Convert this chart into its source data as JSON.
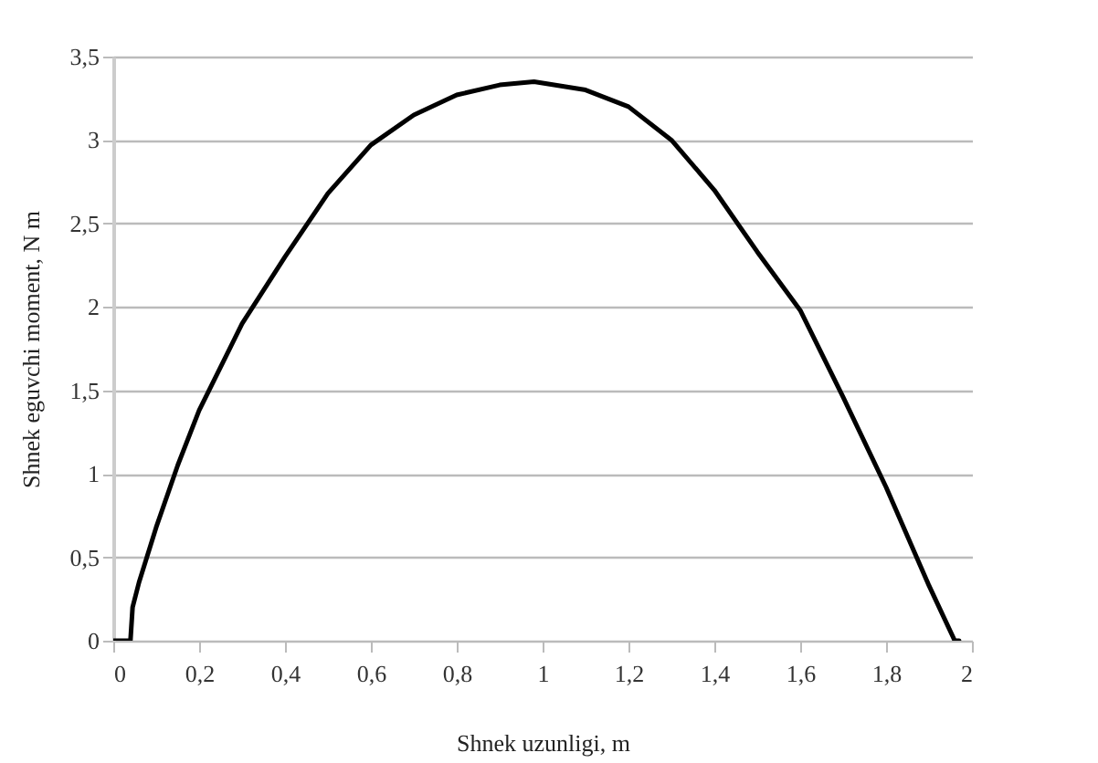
{
  "chart_data": {
    "type": "line",
    "xlabel": "Shnek uzunligi, m",
    "ylabel": "Shnek eguvchi moment, N m",
    "x": [
      0,
      0.04,
      0.045,
      0.06,
      0.1,
      0.15,
      0.2,
      0.3,
      0.4,
      0.5,
      0.6,
      0.7,
      0.8,
      0.9,
      0.98,
      1.1,
      1.2,
      1.3,
      1.4,
      1.5,
      1.6,
      1.7,
      1.8,
      1.9,
      1.96,
      1.97
    ],
    "series": [
      {
        "color": "#000000",
        "values": [
          0,
          0,
          0.2,
          0.35,
          0.68,
          1.05,
          1.38,
          1.9,
          2.3,
          2.68,
          2.97,
          3.15,
          3.27,
          3.33,
          3.35,
          3.3,
          3.2,
          3.0,
          2.7,
          2.33,
          1.98,
          1.46,
          0.92,
          0.33,
          0,
          0
        ]
      }
    ],
    "xlim": [
      0,
      2
    ],
    "xticks": [
      0,
      {
        "value": 0.2,
        "label": "0,2"
      },
      {
        "value": 0.4,
        "label": "0,4"
      },
      {
        "value": 0.6,
        "label": "0,6"
      },
      {
        "value": 0.8,
        "label": "0,8"
      },
      1,
      {
        "value": 1.2,
        "label": "1,2"
      },
      {
        "value": 1.4,
        "label": "1,4"
      },
      {
        "value": 1.6,
        "label": "1,6"
      },
      {
        "value": 1.8,
        "label": "1,8"
      },
      2
    ],
    "ylim": [
      0,
      3.5
    ],
    "yticks": [
      0,
      {
        "value": 0.5,
        "label": "0,5"
      },
      1,
      {
        "value": 1.5,
        "label": "1,5"
      },
      2,
      {
        "value": 2.5,
        "label": "2,5"
      },
      3,
      {
        "value": 3.5,
        "label": "3,5"
      }
    ],
    "grid": "y",
    "marker": "none",
    "line_style": "solid",
    "legend": false
  }
}
